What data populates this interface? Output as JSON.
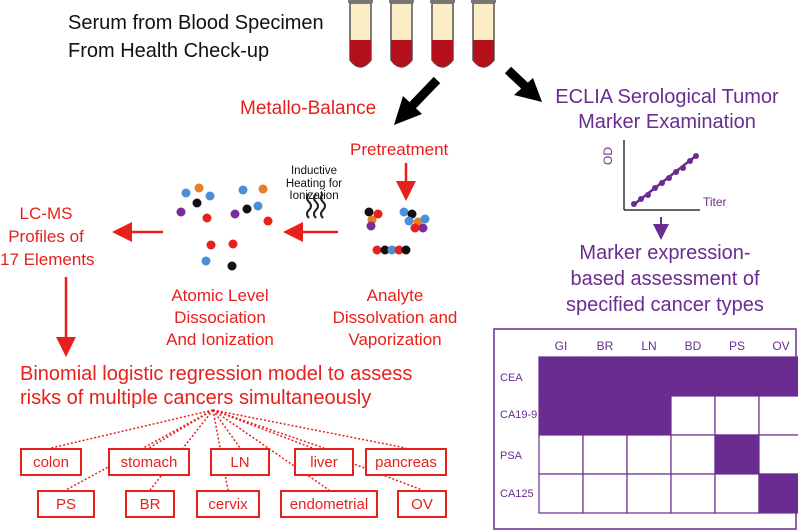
{
  "colors": {
    "red": "#e8201c",
    "purple": "#6a2c91",
    "black": "#111111"
  },
  "header": {
    "line1": "Serum from Blood Specimen",
    "line2": "From Health Check-up"
  },
  "left_flow": {
    "metallo_balance": "Metallo-Balance",
    "pretreatment": "Pretreatment",
    "inductive": [
      "Inductive",
      "Heating for",
      "Ionization"
    ],
    "lcms": [
      "LC-MS",
      "Profiles of",
      "17 Elements"
    ],
    "atomic": [
      "Atomic Level",
      "Dissociation",
      "And Ionization"
    ],
    "analyte": [
      "Analyte",
      "Dissolvation and",
      "Vaporization"
    ],
    "regression": [
      "Binomial logistic regression model to assess",
      "risks of multiple cancers simultaneously"
    ]
  },
  "cancers": {
    "row1": [
      "colon",
      "stomach",
      "LN",
      "liver",
      "pancreas"
    ],
    "row2": [
      "PS",
      "BR",
      "cervix",
      "endometrial",
      "OV"
    ]
  },
  "right_flow": {
    "eclia": [
      "ECLIA Serological Tumor",
      "Marker Examination"
    ],
    "axis_y": "OD",
    "axis_x": "Titer",
    "marker": [
      "Marker expression-",
      "based assessment of",
      "specified cancer types"
    ]
  },
  "matrix": {
    "columns": [
      "GI",
      "BR",
      "LN",
      "BD",
      "PS",
      "OV"
    ],
    "rows": [
      "CEA",
      "CA19-9",
      "PSA",
      "CA125"
    ],
    "filled": [
      [
        1,
        1,
        1,
        1,
        1,
        1
      ],
      [
        1,
        1,
        1,
        0,
        0,
        0
      ],
      [
        0,
        0,
        0,
        0,
        1,
        0
      ],
      [
        0,
        0,
        0,
        0,
        0,
        1
      ]
    ]
  }
}
